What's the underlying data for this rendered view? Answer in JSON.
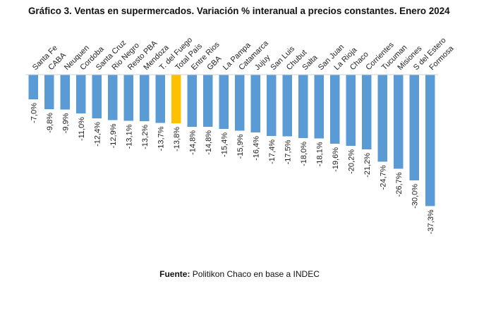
{
  "chart_data": {
    "type": "bar",
    "title": "Gráfico 3. Ventas en supermercados. Variación % interanual a precios constantes. Enero 2024",
    "categories": [
      "Santa Fe",
      "CABA",
      "Neuquen",
      "Cordoba",
      "Santa Cruz",
      "Rio Negro",
      "Resto PBA",
      "Mendoza",
      "T. del Fuego",
      "Total País",
      "Entre Rios",
      "GBA",
      "La Pampa",
      "Catamarca",
      "Jujuy",
      "San Luis",
      "Chubut",
      "Salta",
      "San Juan",
      "La Rioja",
      "Chaco",
      "Corrientes",
      "Tucuman",
      "Misiones",
      "S del Estero",
      "Formosa"
    ],
    "values": [
      -7.0,
      -9.8,
      -9.9,
      -11.0,
      -12.4,
      -12.9,
      -13.1,
      -13.2,
      -13.7,
      -13.8,
      -14.8,
      -14.8,
      -15.4,
      -15.9,
      -16.4,
      -17.4,
      -17.5,
      -18.0,
      -18.1,
      -19.6,
      -20.2,
      -21.2,
      -24.7,
      -26.7,
      -30.0,
      -37.3
    ],
    "value_labels": [
      "-7,0%",
      "-9,8%",
      "-9,9%",
      "-11,0%",
      "-12,4%",
      "-12,9%",
      "-13,1%",
      "-13,2%",
      "-13,7%",
      "-13,8%",
      "-14,8%",
      "-14,8%",
      "-15,4%",
      "-15,9%",
      "-16,4%",
      "-17,4%",
      "-17,5%",
      "-18,0%",
      "-18,1%",
      "-19,6%",
      "-20,2%",
      "-21,2%",
      "-24,7%",
      "-26,7%",
      "-30,0%",
      "-37,3%"
    ],
    "highlight_category": "Total País",
    "colors": {
      "default": "#5b9bd5",
      "highlight": "#ffc000",
      "stroke": "#2f5f8a"
    },
    "ylim": [
      -40,
      0
    ],
    "xlabel": "",
    "ylabel": ""
  },
  "source": {
    "label": "Fuente:",
    "text": " Politikon Chaco en base a INDEC"
  }
}
